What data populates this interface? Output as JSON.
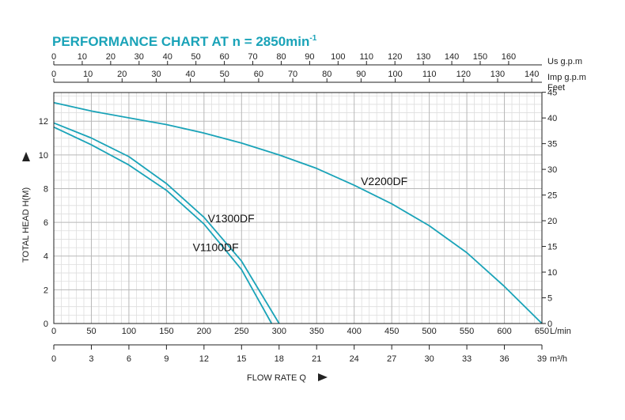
{
  "title": "PERFORMANCE CHART AT n = 2850min",
  "title_sup": "-1",
  "colors": {
    "title": "#1aa3b8",
    "curve": "#1aa3b8",
    "grid": "#b8b8b8",
    "grid_minor": "#dedede",
    "axis": "#222222"
  },
  "chart_data": {
    "type": "line",
    "xlabel": "FLOW RATE  Q",
    "ylabel": "TOTAL HEAD  H(M)",
    "x_unit": "L/min",
    "x_unit_m3": "m³/h",
    "xlim": [
      0,
      650
    ],
    "ylim": [
      0,
      13.7
    ],
    "grid": true,
    "x_ticks": [
      "0",
      "50",
      "100",
      "150",
      "200",
      "250",
      "300",
      "350",
      "400",
      "450",
      "500",
      "550",
      "600",
      "650"
    ],
    "y_ticks": [
      "0",
      "2",
      "4",
      "6",
      "8",
      "10",
      "12"
    ],
    "feet_ticks": [
      "0",
      "5",
      "10",
      "15",
      "20",
      "25",
      "30",
      "35",
      "40",
      "45"
    ],
    "feet_label": "Feet",
    "m3h_ticks": [
      "0",
      "3",
      "6",
      "9",
      "12",
      "15",
      "18",
      "21",
      "24",
      "27",
      "30",
      "33",
      "36",
      "39"
    ],
    "usgpm_ticks": [
      "0",
      "10",
      "20",
      "30",
      "40",
      "50",
      "60",
      "70",
      "80",
      "90",
      "100",
      "110",
      "120",
      "130",
      "140",
      "150",
      "160"
    ],
    "usgpm_label": "Us g.p.m",
    "impgpm_ticks": [
      "0",
      "10",
      "20",
      "30",
      "40",
      "50",
      "60",
      "70",
      "80",
      "90",
      "100",
      "110",
      "120",
      "130",
      "140"
    ],
    "impgpm_label": "Imp g.p.m",
    "series": [
      {
        "name": "V2200DF",
        "x": [
          0,
          50,
          100,
          150,
          200,
          250,
          300,
          350,
          400,
          450,
          500,
          550,
          600,
          650
        ],
        "y": [
          13.1,
          12.6,
          12.2,
          11.8,
          11.3,
          10.7,
          10.0,
          9.2,
          8.2,
          7.1,
          5.8,
          4.2,
          2.2,
          0
        ]
      },
      {
        "name": "V1300DF",
        "x": [
          0,
          50,
          100,
          150,
          200,
          250,
          300
        ],
        "y": [
          11.9,
          11.0,
          9.9,
          8.3,
          6.3,
          3.7,
          0
        ]
      },
      {
        "name": "V1100DF",
        "x": [
          0,
          50,
          100,
          150,
          200,
          250,
          290
        ],
        "y": [
          11.65,
          10.6,
          9.4,
          7.9,
          5.9,
          3.2,
          0
        ]
      }
    ]
  }
}
